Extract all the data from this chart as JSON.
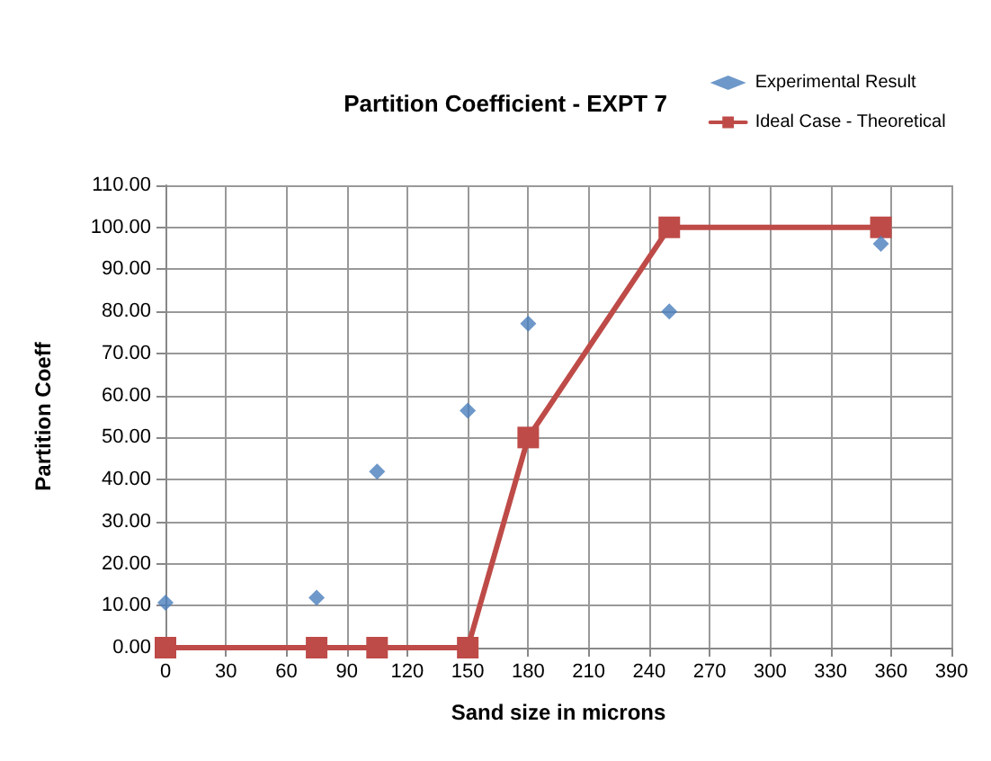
{
  "chart_data": {
    "type": "scatter",
    "title": "Partition Coefficient - EXPT 7",
    "xlabel": "Sand size in microns",
    "ylabel": "Partition Coeff",
    "series": [
      {
        "name": "Experimental Result",
        "marker": "diamond",
        "color": "#4a7ebb",
        "x": [
          0,
          75,
          105,
          150,
          180,
          250,
          355
        ],
        "values": [
          10.7,
          11.9,
          41.9,
          56.4,
          77.1,
          80,
          96.1
        ]
      },
      {
        "name": "Ideal Case - Theoretical",
        "type": "line",
        "marker": "square",
        "line_style": "solid",
        "color": "#be4b48",
        "x": [
          0,
          75,
          105,
          150,
          180,
          250,
          355
        ],
        "values": [
          0,
          0,
          0,
          0,
          50,
          100,
          100
        ]
      }
    ],
    "xlim": [
      0,
      390
    ],
    "xticks": [
      0,
      30,
      60,
      90,
      120,
      150,
      180,
      210,
      240,
      270,
      300,
      330,
      360,
      390
    ],
    "ylim": [
      0,
      110
    ],
    "yticks": [
      {
        "value": 0,
        "label": "0.00"
      },
      {
        "value": 10,
        "label": "10.00"
      },
      {
        "value": 20,
        "label": "20.00"
      },
      {
        "value": 30,
        "label": "30.00"
      },
      {
        "value": 40,
        "label": "40.00"
      },
      {
        "value": 50,
        "label": "50.00"
      },
      {
        "value": 60,
        "label": "60.00"
      },
      {
        "value": 70,
        "label": "70.00"
      },
      {
        "value": 80,
        "label": "80.00"
      },
      {
        "value": 90,
        "label": "90.00"
      },
      {
        "value": 100,
        "label": "100.00"
      },
      {
        "value": 110,
        "label": "110.00"
      }
    ],
    "grid": true,
    "legend": "top right"
  }
}
